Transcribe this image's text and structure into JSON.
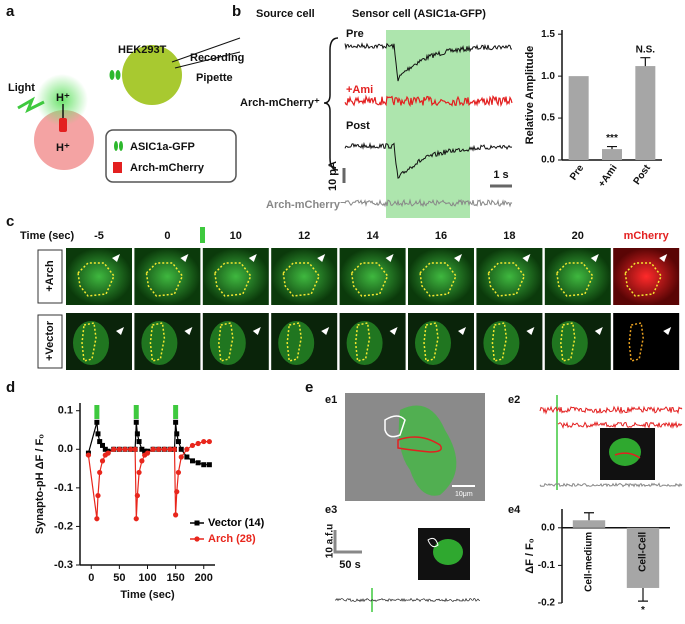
{
  "panels": {
    "a": {
      "label": "a",
      "cell": "HEK293T",
      "light": "Light",
      "proton_top": "H⁺",
      "proton_bottom": "H⁺",
      "recording": "Recording",
      "pipette": "Pipette",
      "legend": [
        "ASIC1a-GFP",
        "Arch-mCherry"
      ]
    },
    "b": {
      "label": "b",
      "source": "Source cell",
      "sensor": "Sensor cell (ASIC1a-GFP)",
      "group_pos": "Arch-mCherry⁺",
      "group_neg": "Arch-mCherry⁻",
      "traces": [
        "Pre",
        "+Ami",
        "Post"
      ],
      "scale_y": "10 pA",
      "scale_x": "1 s"
    },
    "c": {
      "label": "c",
      "time_label": "Time (sec)",
      "times": [
        "-5",
        "0",
        "10",
        "12",
        "14",
        "16",
        "18",
        "20"
      ],
      "channel": "mCherry",
      "rows": [
        "+Arch",
        "+Vector"
      ]
    },
    "d": {
      "label": "d"
    },
    "e": {
      "label": "e",
      "e1": "e1",
      "e2": "e2",
      "e3": "e3",
      "e4": "e4",
      "scale_um": "10μm",
      "scale_afu": "10 a.f.u",
      "scale_s": "50 s"
    }
  },
  "chart_data": [
    {
      "type": "bar",
      "ylabel": "Relative Amplitude",
      "categories": [
        "Pre",
        "+Ami",
        "Post"
      ],
      "values": [
        1,
        0.13,
        1.12
      ],
      "errors": [
        null,
        0.03,
        0.1
      ],
      "annotations": [
        null,
        "***",
        "N.S."
      ],
      "color": "#a6a6a6",
      "ylim": [
        0,
        1.55
      ],
      "yticks": [
        {
          "value": 0,
          "label": "0.0"
        },
        0.5,
        {
          "value": 1,
          "label": "1.0"
        },
        1.5
      ]
    },
    {
      "type": "line",
      "xlabel": "Time (sec)",
      "ylabel": "Synapto-pH ΔF / F₀",
      "x": [
        -5,
        10,
        12,
        15,
        20,
        25,
        30,
        40,
        50,
        60,
        70,
        78,
        80,
        82,
        85,
        90,
        95,
        100,
        110,
        120,
        130,
        140,
        148,
        150,
        152,
        155,
        160,
        170,
        180,
        190,
        200,
        210
      ],
      "series": [
        {
          "name": "Vector (14)",
          "color": "#000000",
          "marker": "square",
          "values": [
            -0.01,
            0.07,
            0.04,
            0.02,
            0.01,
            0.0,
            -0.005,
            0.0,
            0.0,
            0.0,
            0.0,
            0.0,
            0.07,
            0.04,
            0.02,
            0.0,
            -0.005,
            -0.005,
            0.0,
            0.0,
            0.0,
            0.0,
            0.0,
            0.07,
            0.04,
            0.02,
            0.0,
            -0.02,
            -0.03,
            -0.035,
            -0.04,
            -0.04
          ]
        },
        {
          "name": "Arch (28)",
          "color": "#e8261c",
          "marker": "circle",
          "values": [
            -0.015,
            -0.18,
            -0.12,
            -0.06,
            -0.03,
            -0.015,
            -0.01,
            0.0,
            0.0,
            0.0,
            0.0,
            0.0,
            -0.18,
            -0.12,
            -0.06,
            -0.03,
            -0.015,
            -0.01,
            0.0,
            0.0,
            0.0,
            0.0,
            0.0,
            -0.17,
            -0.11,
            -0.06,
            -0.02,
            0.0,
            0.01,
            0.015,
            0.02,
            0.02
          ]
        }
      ],
      "stimuli": [
        10,
        80,
        150
      ],
      "stimulus_color": "#3ec93e",
      "xlim": [
        -20,
        220
      ],
      "ylim": [
        -0.3,
        0.12
      ],
      "xticks": [
        0,
        50,
        100,
        150,
        200
      ],
      "yticks": [
        -0.3,
        -0.2,
        -0.1,
        {
          "value": 0,
          "label": "0.0"
        },
        0.1
      ]
    },
    {
      "type": "bar",
      "ylabel": "ΔF / F₀",
      "categories": [
        "Cell-medium",
        "Cell-Cell"
      ],
      "values": [
        0.02,
        -0.16
      ],
      "errors": [
        0.02,
        0.035
      ],
      "annotations": [
        null,
        "*"
      ],
      "color": "#a6a6a6",
      "ylim": [
        -0.2,
        0.05
      ],
      "yticks": [
        -0.2,
        -0.1,
        {
          "value": 0,
          "label": "0.0"
        }
      ]
    }
  ]
}
